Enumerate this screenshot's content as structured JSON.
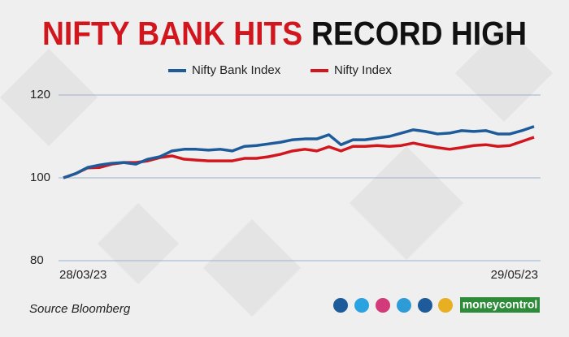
{
  "chart_data": {
    "type": "line",
    "title": [
      "NIFTY BANK HITS",
      "RECORD HIGH"
    ],
    "categories": [
      "28/03/23",
      null,
      null,
      null,
      null,
      null,
      null,
      null,
      null,
      null,
      null,
      null,
      null,
      null,
      null,
      null,
      null,
      null,
      null,
      null,
      null,
      null,
      null,
      null,
      null,
      null,
      null,
      null,
      null,
      null,
      null,
      null,
      null,
      null,
      null,
      null,
      null,
      null,
      null,
      "29/05/23"
    ],
    "series": [
      {
        "name": "Nifty Bank Index",
        "color": "#1d5b9b",
        "values": [
          100,
          101,
          102.5,
          103.1,
          103.5,
          103.7,
          103.3,
          104.5,
          105.1,
          106.5,
          106.9,
          106.9,
          106.7,
          106.9,
          106.5,
          107.6,
          107.8,
          108.2,
          108.6,
          109.2,
          109.4,
          109.4,
          110.4,
          108.0,
          109.2,
          109.2,
          109.6,
          110.0,
          110.8,
          111.6,
          111.2,
          110.6,
          110.8,
          111.4,
          111.2,
          111.4,
          110.6,
          110.6,
          111.4,
          112.4
        ]
      },
      {
        "name": "Nifty Index",
        "color": "#d2161e",
        "values": [
          100,
          101,
          102.4,
          102.5,
          103.3,
          103.7,
          103.7,
          104.1,
          104.9,
          105.3,
          104.5,
          104.3,
          104.1,
          104.1,
          104.1,
          104.7,
          104.7,
          105.1,
          105.7,
          106.5,
          106.9,
          106.5,
          107.5,
          106.5,
          107.6,
          107.6,
          107.8,
          107.6,
          107.8,
          108.4,
          107.8,
          107.3,
          106.9,
          107.3,
          107.8,
          108.0,
          107.6,
          107.8,
          108.8,
          109.8
        ]
      }
    ],
    "ylim": [
      80,
      120
    ],
    "yticks": [
      80,
      100,
      120
    ],
    "grid": true
  },
  "footer": {
    "source": "Source Bloomberg",
    "brand": "moneycontrol"
  }
}
